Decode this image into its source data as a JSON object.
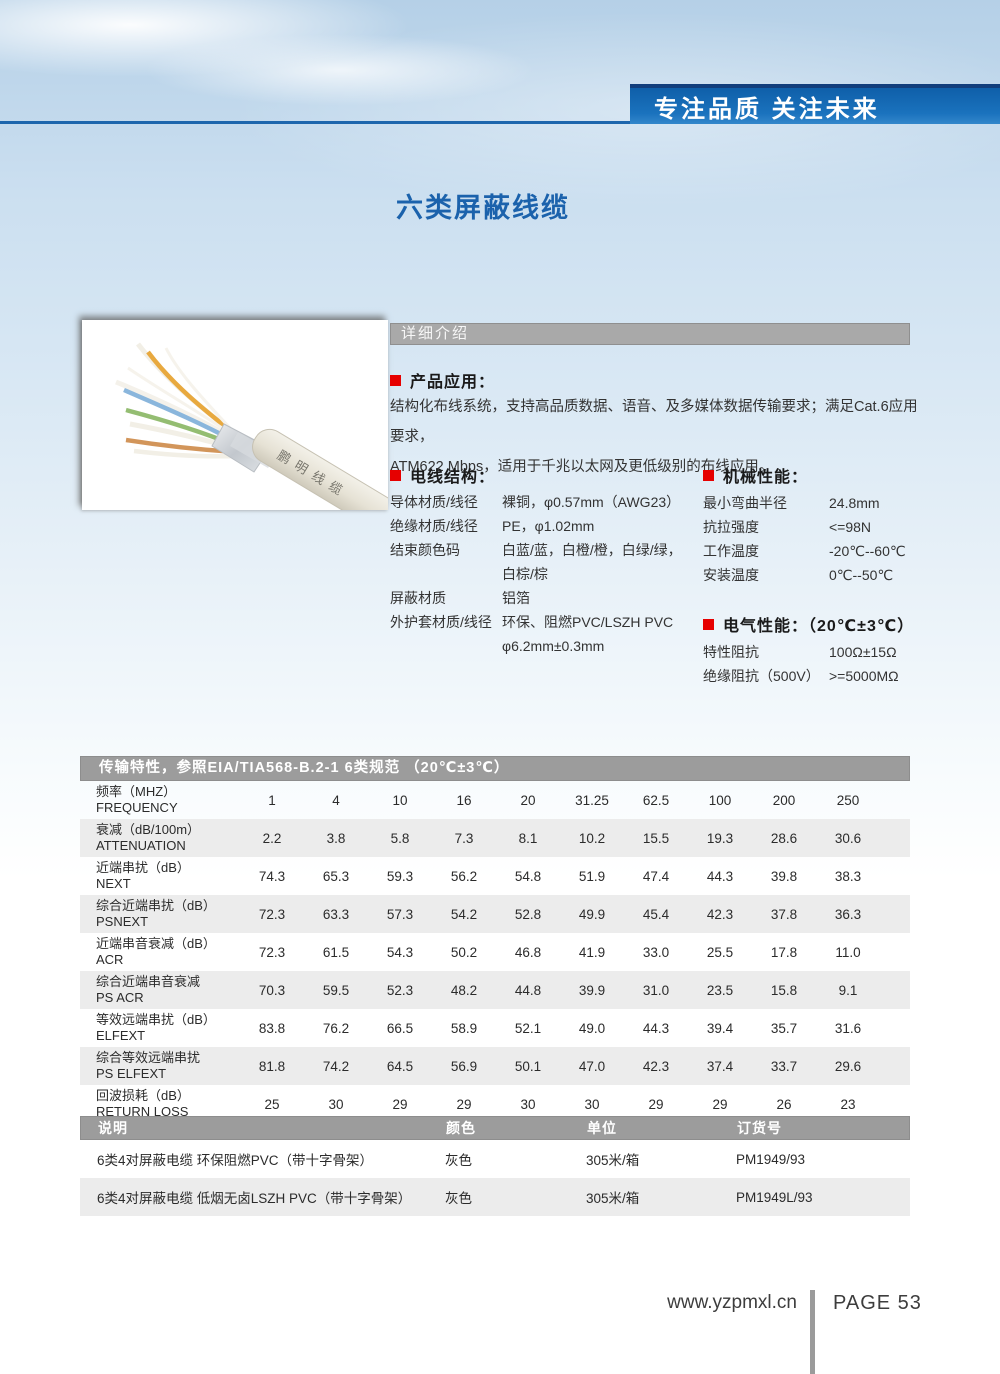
{
  "colors": {
    "accent_blue": "#1b62ac",
    "banner_blue": "#1a72bd",
    "bullet_red": "#e60000",
    "bar_gray": "#9c9c9c",
    "alt_row_gray": "#ececec"
  },
  "banner": {
    "slogan": "专注品质  关注未来"
  },
  "page_title": "六类屏蔽线缆",
  "product_image": {
    "label": "鹏明线缆"
  },
  "detail": {
    "header": "详细介绍"
  },
  "application": {
    "heading": "产品应用：",
    "lines": [
      "结构化布线系统，支持高品质数据、语音、及多媒体数据传输要求；满足Cat.6应用要求，",
      "ATM622 Mbps，适用于千兆以太网及更低级别的布线应用。"
    ]
  },
  "structure": {
    "heading": "电线结构：",
    "rows": [
      {
        "label": "导体材质/线径",
        "value": "裸铜，φ0.57mm（AWG23）"
      },
      {
        "label": "绝缘材质/线径",
        "value": "PE，φ1.02mm"
      },
      {
        "label": "结束颜色码",
        "value": "白蓝/蓝，白橙/橙，白绿/绿，",
        "value2": "白棕/棕"
      },
      {
        "label": "屏蔽材质",
        "value": "铝箔"
      },
      {
        "label": "外护套材质/线径",
        "value": "环保、阻燃PVC/LSZH PVC",
        "value2": "φ6.2mm±0.3mm"
      }
    ]
  },
  "mechanical": {
    "heading": "机械性能：",
    "rows": [
      {
        "label": "最小弯曲半径",
        "value": "24.8mm"
      },
      {
        "label": "抗拉强度",
        "value": "<=98N"
      },
      {
        "label": "工作温度",
        "value": "-20℃--60℃"
      },
      {
        "label": "安装温度",
        "value": "0℃--50℃"
      }
    ]
  },
  "electrical": {
    "heading": "电气性能：（20℃±3℃）",
    "rows": [
      {
        "label": "特性阻抗",
        "value": "100Ω±15Ω"
      },
      {
        "label": "绝缘阻抗（500V）",
        "value": ">=5000MΩ"
      }
    ]
  },
  "transmission": {
    "header": "传输特性，参照EIA/TIA568-B.2-1 6类规范 （20℃±3℃）",
    "rows": [
      {
        "cn": "频率（MHZ）",
        "en": "FREQUENCY",
        "values": [
          "1",
          "4",
          "10",
          "16",
          "20",
          "31.25",
          "62.5",
          "100",
          "200",
          "250"
        ]
      },
      {
        "cn": "衰减（dB/100m）",
        "en": "ATTENUATION",
        "values": [
          "2.2",
          "3.8",
          "5.8",
          "7.3",
          "8.1",
          "10.2",
          "15.5",
          "19.3",
          "28.6",
          "30.6"
        ]
      },
      {
        "cn": "近端串扰（dB）",
        "en": "NEXT",
        "values": [
          "74.3",
          "65.3",
          "59.3",
          "56.2",
          "54.8",
          "51.9",
          "47.4",
          "44.3",
          "39.8",
          "38.3"
        ]
      },
      {
        "cn": "综合近端串扰（dB）",
        "en": "PSNEXT",
        "values": [
          "72.3",
          "63.3",
          "57.3",
          "54.2",
          "52.8",
          "49.9",
          "45.4",
          "42.3",
          "37.8",
          "36.3"
        ]
      },
      {
        "cn": "近端串音衰减（dB）",
        "en": "ACR",
        "values": [
          "72.3",
          "61.5",
          "54.3",
          "50.2",
          "46.8",
          "41.9",
          "33.0",
          "25.5",
          "17.8",
          "11.0"
        ]
      },
      {
        "cn": "综合近端串音衰减",
        "en": "PS ACR",
        "values": [
          "70.3",
          "59.5",
          "52.3",
          "48.2",
          "44.8",
          "39.9",
          "31.0",
          "23.5",
          "15.8",
          "9.1"
        ]
      },
      {
        "cn": "等效远端串扰（dB）",
        "en": "ELFEXT",
        "values": [
          "83.8",
          "76.2",
          "66.5",
          "58.9",
          "52.1",
          "49.0",
          "44.3",
          "39.4",
          "35.7",
          "31.6"
        ]
      },
      {
        "cn": "综合等效远端串扰",
        "en": "PS ELFEXT",
        "values": [
          "81.8",
          "74.2",
          "64.5",
          "56.9",
          "50.1",
          "47.0",
          "42.3",
          "37.4",
          "33.7",
          "29.6"
        ]
      },
      {
        "cn": "回波损耗（dB）",
        "en": "RETURN LOSS",
        "values": [
          "25",
          "30",
          "29",
          "29",
          "30",
          "30",
          "29",
          "29",
          "26",
          "23"
        ]
      }
    ]
  },
  "ordering": {
    "headers": [
      "说明",
      "颜色",
      "单位",
      "订货号"
    ],
    "rows": [
      [
        "6类4对屏蔽电缆 环保阻燃PVC（带十字骨架）",
        "灰色",
        "305米/箱",
        "PM1949/93"
      ],
      [
        "6类4对屏蔽电缆 低烟无卤LSZH PVC（带十字骨架）",
        "灰色",
        "305米/箱",
        "PM1949L/93"
      ]
    ]
  },
  "footer": {
    "website": "www.yzpmxl.cn",
    "page": "PAGE 53"
  }
}
